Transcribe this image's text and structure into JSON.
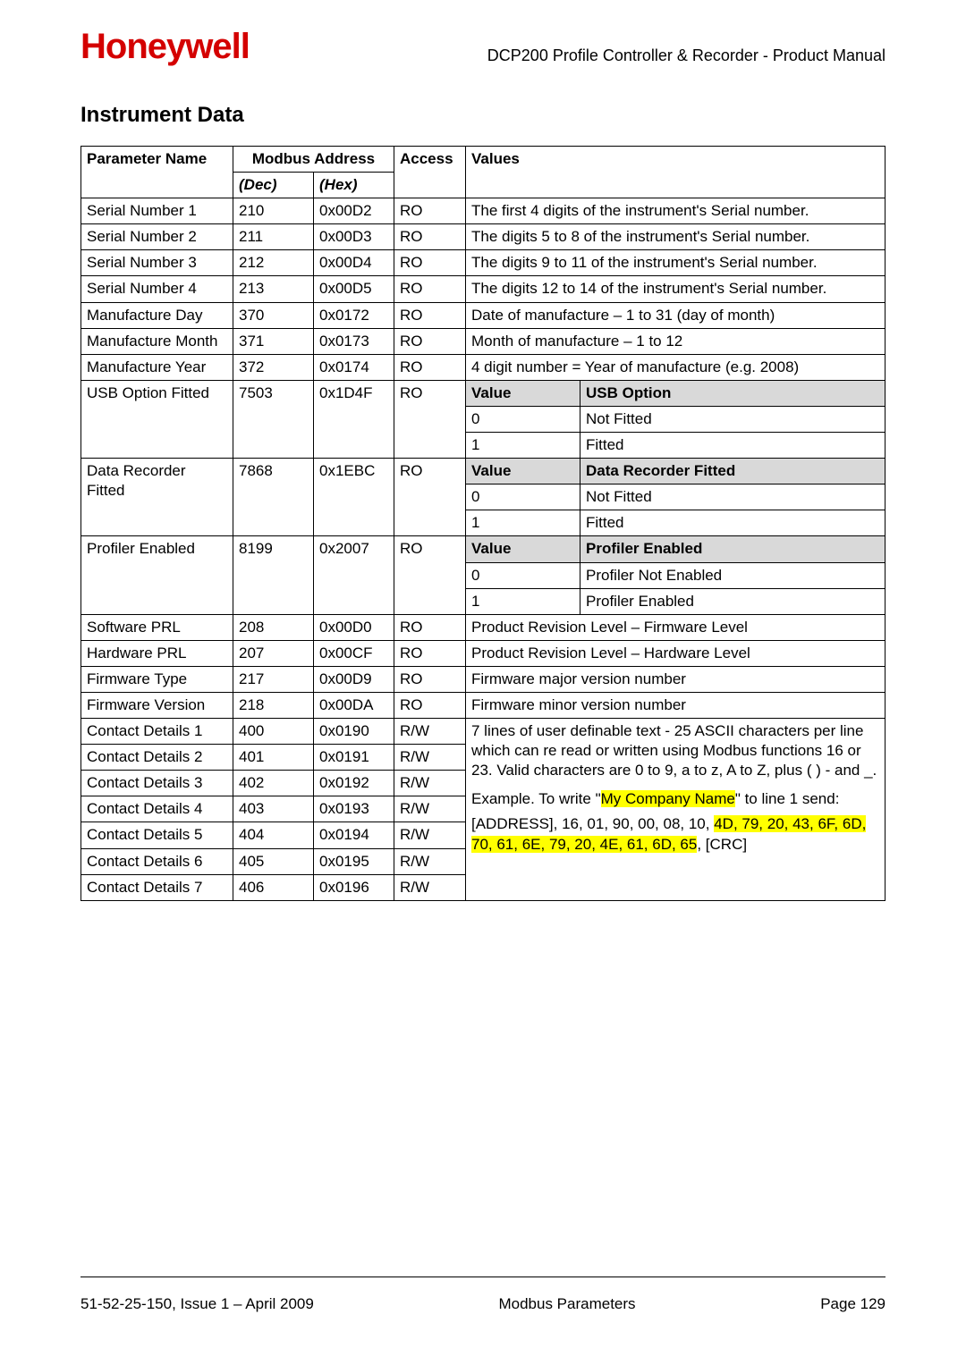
{
  "header": {
    "logo": "Honeywell",
    "doc_title": "DCP200 Profile Controller & Recorder - Product Manual"
  },
  "section_title": "Instrument Data",
  "columns": {
    "param": "Parameter Name",
    "modbus": "Modbus Address",
    "dec": "(Dec)",
    "hex": "(Hex)",
    "access": "Access",
    "values": "Values"
  },
  "simple_rows": [
    {
      "param": "Serial Number 1",
      "dec": "210",
      "hex": "0x00D2",
      "access": "RO",
      "value": "The first 4 digits of the instrument's Serial number."
    },
    {
      "param": "Serial Number 2",
      "dec": "211",
      "hex": "0x00D3",
      "access": "RO",
      "value": "The digits 5 to 8 of the instrument's Serial number."
    },
    {
      "param": "Serial Number 3",
      "dec": "212",
      "hex": "0x00D4",
      "access": "RO",
      "value": "The digits 9 to 11 of the instrument's Serial number."
    },
    {
      "param": "Serial Number 4",
      "dec": "213",
      "hex": "0x00D5",
      "access": "RO",
      "value": "The digits 12 to 14 of the instrument's Serial number."
    },
    {
      "param": "Manufacture Day",
      "dec": "370",
      "hex": "0x0172",
      "access": "RO",
      "value": "Date of manufacture – 1 to 31 (day of month)"
    },
    {
      "param": "Manufacture Month",
      "dec": "371",
      "hex": "0x0173",
      "access": "RO",
      "value": "Month of manufacture – 1 to 12"
    },
    {
      "param": "Manufacture Year",
      "dec": "372",
      "hex": "0x0174",
      "access": "RO",
      "value": "4 digit number = Year of manufacture (e.g. 2008)"
    }
  ],
  "enum_rows": [
    {
      "param": "USB Option Fitted",
      "dec": "7503",
      "hex": "0x1D4F",
      "access": "RO",
      "hdr_left": "Value",
      "hdr_right": "USB Option",
      "rows": [
        [
          "0",
          "Not Fitted"
        ],
        [
          "1",
          "Fitted"
        ]
      ]
    },
    {
      "param": "Data Recorder Fitted",
      "dec": "7868",
      "hex": "0x1EBC",
      "access": "RO",
      "hdr_left": "Value",
      "hdr_right": "Data Recorder Fitted",
      "rows": [
        [
          "0",
          "Not Fitted"
        ],
        [
          "1",
          "Fitted"
        ]
      ]
    },
    {
      "param": "Profiler Enabled",
      "dec": "8199",
      "hex": "0x2007",
      "access": "RO",
      "hdr_left": "Value",
      "hdr_right": "Profiler Enabled",
      "rows": [
        [
          "0",
          "Profiler Not Enabled"
        ],
        [
          "1",
          "Profiler Enabled"
        ]
      ]
    }
  ],
  "simple_rows2": [
    {
      "param": "Software PRL",
      "dec": "208",
      "hex": "0x00D0",
      "access": "RO",
      "value": "Product Revision Level – Firmware  Level"
    },
    {
      "param": "Hardware PRL",
      "dec": "207",
      "hex": "0x00CF",
      "access": "RO",
      "value": "Product Revision Level – Hardware  Level"
    },
    {
      "param": "Firmware Type",
      "dec": "217",
      "hex": "0x00D9",
      "access": "RO",
      "value": "Firmware major version number"
    },
    {
      "param": "Firmware Version",
      "dec": "218",
      "hex": "0x00DA",
      "access": "RO",
      "value": "Firmware minor version number"
    }
  ],
  "contact_rows": [
    {
      "param": "Contact Details 1",
      "dec": "400",
      "hex": "0x0190",
      "access": "R/W"
    },
    {
      "param": "Contact Details 2",
      "dec": "401",
      "hex": "0x0191",
      "access": "R/W"
    },
    {
      "param": "Contact Details 3",
      "dec": "402",
      "hex": "0x0192",
      "access": "R/W"
    },
    {
      "param": "Contact Details 4",
      "dec": "403",
      "hex": "0x0193",
      "access": "R/W"
    },
    {
      "param": "Contact Details 5",
      "dec": "404",
      "hex": "0x0194",
      "access": "R/W"
    },
    {
      "param": "Contact Details 6",
      "dec": "405",
      "hex": "0x0195",
      "access": "R/W"
    },
    {
      "param": "Contact Details 7",
      "dec": "406",
      "hex": "0x0196",
      "access": "R/W"
    }
  ],
  "contact_value": {
    "line1": "7 lines of user definable text - 25 ASCII characters per line which can re read or written using Modbus functions 16 or 23. Valid characters are 0 to 9, a to z, A to Z, plus ( )  - and _.",
    "ex_prefix": "Example. To write \"",
    "ex_hl": "My Company Name",
    "ex_suffix": "\" to line 1 send:",
    "addr_prefix": "[ADDRESS], 16, 01, 90, 00, 08, 10, ",
    "addr_hl": "4D, 79, 20, 43, 6F, 6D, 70, 61, 6E, 79, 20, 4E, 61, 6D, 65",
    "addr_suffix": ", [CRC]"
  },
  "footer": {
    "left": "51-52-25-150, Issue 1 – April 2009",
    "center": "Modbus Parameters",
    "right": "Page 129"
  },
  "style": {
    "highlight_bg": "#ffff00",
    "header_bg": "#d9d9d9",
    "logo_color": "#d40000"
  }
}
